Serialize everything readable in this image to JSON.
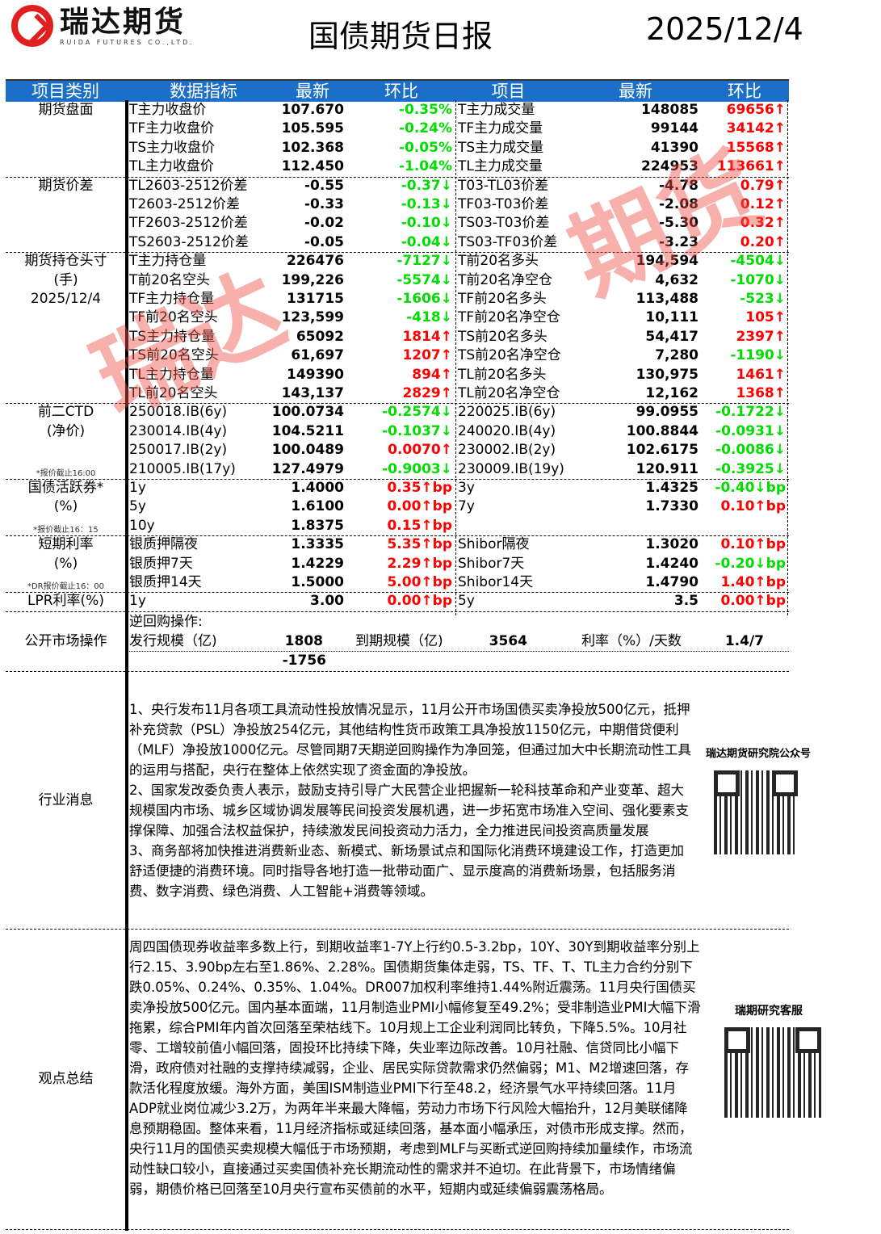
{
  "header": {
    "logo_cn": "瑞达期货",
    "logo_en": "RUIDA FUTURES CO.,LTD.",
    "title": "国债期货日报",
    "date": "2025/12/4"
  },
  "colors": {
    "header_bg": "#1c6fc8",
    "up": "#ff0000",
    "down": "#00dd00"
  },
  "table_headers": [
    "项目类别",
    "数据指标",
    "最新",
    "环比",
    "项目",
    "最新",
    "环比"
  ],
  "sections": [
    {
      "category": [
        "期货盘面"
      ],
      "rows": [
        [
          "T主力收盘价",
          "107.670",
          "-0.35%",
          "down",
          "T主力成交量",
          "148085",
          "69656↑",
          "up"
        ],
        [
          "TF主力收盘价",
          "105.595",
          "-0.24%",
          "down",
          "TF主力成交量",
          "99144",
          "34142↑",
          "up"
        ],
        [
          "TS主力收盘价",
          "102.368",
          "-0.05%",
          "down",
          "TS主力成交量",
          "41390",
          "15568↑",
          "up"
        ],
        [
          "TL主力收盘价",
          "112.450",
          "-1.04%",
          "down",
          "TL主力成交量",
          "224953",
          "113661↑",
          "up"
        ]
      ]
    },
    {
      "category": [
        "期货价差"
      ],
      "rows": [
        [
          "TL2603-2512价差",
          "-0.55",
          "-0.37↓",
          "down",
          "T03-TL03价差",
          "-4.78",
          "0.79↑",
          "up"
        ],
        [
          "T2603-2512价差",
          "-0.33",
          "-0.13↓",
          "down",
          "TF03-T03价差",
          "-2.08",
          "0.12↑",
          "up"
        ],
        [
          "TF2603-2512价差",
          "-0.02",
          "-0.10↓",
          "down",
          "TS03-T03价差",
          "-5.30",
          "0.32↑",
          "up"
        ],
        [
          "TS2603-2512价差",
          "-0.05",
          "-0.04↓",
          "down",
          "TS03-TF03价差",
          "-3.23",
          "0.20↑",
          "up"
        ]
      ]
    },
    {
      "category": [
        "期货持仓头寸",
        "(手)",
        "2025/12/4"
      ],
      "rows": [
        [
          "T主力持仓量",
          "226476",
          "-7127↓",
          "down",
          "T前20名多头",
          "194,594",
          "-4504↓",
          "down"
        ],
        [
          "T前20名空头",
          "199,226",
          "-5574↓",
          "down",
          "T前20名净空仓",
          "4,632",
          "-1070↓",
          "down"
        ],
        [
          "TF主力持仓量",
          "131715",
          "-1606↓",
          "down",
          "TF前20名多头",
          "113,488",
          "-523↓",
          "down"
        ],
        [
          "TF前20名空头",
          "123,599",
          "-418↓",
          "down",
          "TF前20名净空仓",
          "10,111",
          "105↑",
          "up"
        ],
        [
          "TS主力持仓量",
          "65092",
          "1814↑",
          "up",
          "TS前20名多头",
          "54,417",
          "2397↑",
          "up"
        ],
        [
          "TS前20名空头",
          "61,697",
          "1207↑",
          "up",
          "TS前20名净空仓",
          "7,280",
          "-1190↓",
          "down"
        ],
        [
          "TL主力持仓量",
          "149390",
          "894↑",
          "up",
          "TL前20名多头",
          "130,975",
          "1461↑",
          "up"
        ],
        [
          "TL前20名空头",
          "143,137",
          "2829↑",
          "up",
          "TL前20名净空仓",
          "12,162",
          "1368↑",
          "up"
        ]
      ]
    },
    {
      "category": [
        "前二CTD",
        "(净价)"
      ],
      "note": "*报价截止16:00",
      "rows": [
        [
          "250018.IB(6y)",
          "100.0734",
          "-0.2574↓",
          "down",
          "220025.IB(6y)",
          "99.0955",
          "-0.1722↓",
          "down"
        ],
        [
          "230014.IB(4y)",
          "104.5211",
          "-0.1037↓",
          "down",
          "240020.IB(4y)",
          "100.8844",
          "-0.0931↓",
          "down"
        ],
        [
          "250017.IB(2y)",
          "100.0489",
          "0.0070↑",
          "up",
          "230002.IB(2y)",
          "102.6175",
          "-0.0086↓",
          "down"
        ],
        [
          "210005.IB(17y)",
          "127.4979",
          "-0.9003↓",
          "down",
          "230009.IB(19y)",
          "120.911",
          "-0.3925↓",
          "down"
        ]
      ]
    },
    {
      "category": [
        "国债活跃券*",
        "(%)"
      ],
      "note": "*报价截止16：15",
      "rows": [
        [
          "1y",
          "1.4000",
          "0.35↑bp",
          "up",
          "3y",
          "1.4325",
          "-0.40↓bp",
          "down"
        ],
        [
          "5y",
          "1.6100",
          "0.00↑bp",
          "up",
          "7y",
          "1.7330",
          "0.10↑bp",
          "up"
        ],
        [
          "10y",
          "1.8375",
          "0.15↑bp",
          "up",
          "",
          "",
          "",
          ""
        ]
      ]
    },
    {
      "category": [
        "短期利率",
        "(%)"
      ],
      "note": "*DR报价截止16：00",
      "rows": [
        [
          "银质押隔夜",
          "1.3335",
          "5.35↑bp",
          "up",
          "Shibor隔夜",
          "1.3020",
          "0.10↑bp",
          "up"
        ],
        [
          "银质押7天",
          "1.4229",
          "2.29↑bp",
          "up",
          "Shibor7天",
          "1.4240",
          "-0.20↓bp",
          "down"
        ],
        [
          "银质押14天",
          "1.5000",
          "5.00↑bp",
          "up",
          "Shibor14天",
          "1.4790",
          "1.40↑bp",
          "up"
        ]
      ]
    },
    {
      "category": [
        "LPR利率(%)"
      ],
      "rows": [
        [
          "1y",
          "3.00",
          "0.00↑bp",
          "up",
          "5y",
          "3.5",
          "0.00↑bp",
          "up"
        ]
      ]
    }
  ],
  "open_market": {
    "category": "公开市场操作",
    "label": "逆回购操作:",
    "issue_label": "发行规模（亿)",
    "issue": "1808",
    "maturity_label": "到期规模（亿)",
    "maturity": "3564",
    "rate_label": "利率（%）/天数",
    "rate": "1.4/7",
    "net": "-1756"
  },
  "news": {
    "category": "行业消息",
    "text": "1、央行发布11月各项工具流动性投放情况显示，11月公开市场国债买卖净投放500亿元，抵押补充贷款（PSL）净投放254亿元，其他结构性货币政策工具净投放1150亿元，中期借贷便利（MLF）净投放1000亿元。尽管同期7天期逆回购操作为净回笼，但通过加大中长期流动性工具的运用与搭配，央行在整体上依然实现了资金面的净投放。\n2、国家发改委负责人表示，鼓励支持引导广大民营企业把握新一轮科技革命和产业变革、超大规模国内市场、城乡区域协调发展等民间投资发展机遇，进一步拓宽市场准入空间、强化要素支撑保障、加强合法权益保护，持续激发民间投资动力活力，全力推进民间投资高质量发展\n3、商务部将加快推进消费新业态、新模式、新场景试点和国际化消费环境建设工作，打造更加舒适便捷的消费环境。同时指导各地打造一批带动面广、显示度高的消费新场景，包括服务消费、数字消费、绿色消费、人工智能+消费等领域。",
    "qr_label": "瑞达期货研究院公众号"
  },
  "summary": {
    "category": "观点总结",
    "text": "周四国债现券收益率多数上行，到期收益率1-7Y上行约0.5-3.2bp，10Y、30Y到期收益率分别上行2.15、3.90bp左右至1.86%、2.28%。国债期货集体走弱，TS、TF、T、TL主力合约分别下跌0.05%、0.24%、0.35%、1.04%。DR007加权利率维持1.44%附近震荡。11月央行国债买卖净投放500亿元。国内基本面端，11月制造业PMI小幅修复至49.2%；受非制造业PMI大幅下滑拖累，综合PMI年内首次回落至荣枯线下。10月规上工企业利润同比转负，下降5.5%。10月社零、工增较前值小幅回落，固投环比持续下降，失业率边际改善。10月社融、信贷同比小幅下滑，政府债对社融的支撑持续减弱，企业、居民实际贷款需求仍然偏弱；M1、M2增速回落，存款活化程度放缓。海外方面，美国ISM制造业PMI下行至48.2，经济景气水平持续回落。11月ADP就业岗位减少3.2万，为两年半来最大降幅，劳动力市场下行风险大幅抬升，12月美联储降息预期稳固。整体来看，11月经济指标或延续回落，基本面小幅承压，对债市形成支撑。然而，央行11月的国债买卖规模大幅低于市场预期，考虑到MLF与买断式逆回购持续加量续作，市场流动性缺口较小，直接通过买卖国债补充长期流动性的需求并不迫切。在此背景下，市场情绪偏弱，期债价格已回落至10月央行宣布买债前的水平，短期内或延续偏弱震荡格局。",
    "qr_label": "瑞期研究客服"
  }
}
